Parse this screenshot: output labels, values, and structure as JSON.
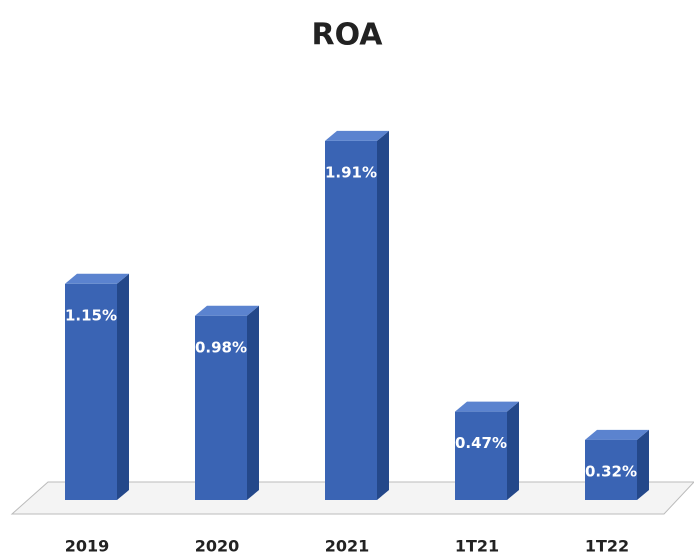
{
  "chart_data": {
    "type": "bar3d",
    "title": "ROA",
    "categories": [
      "2019",
      "2020",
      "2021",
      "1T21",
      "1T22"
    ],
    "values": [
      1.15,
      0.98,
      1.91,
      0.47,
      0.32
    ],
    "value_labels": [
      "1.15%",
      "0.98%",
      "1.91%",
      "0.47%",
      "0.32%"
    ],
    "color": "#3a64b4"
  }
}
